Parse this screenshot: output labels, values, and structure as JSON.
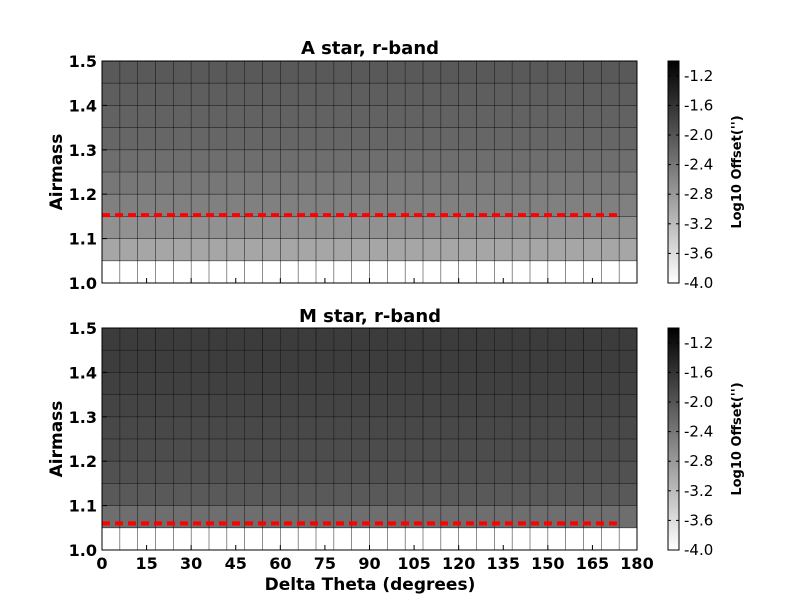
{
  "chart_data": [
    {
      "type": "heatmap",
      "title": "A star, r-band",
      "xlabel": "",
      "ylabel": "Airmass",
      "x_edges": [
        0,
        6,
        12,
        18,
        24,
        30,
        36,
        42,
        48,
        54,
        60,
        66,
        72,
        78,
        84,
        90,
        96,
        102,
        108,
        114,
        120,
        126,
        132,
        138,
        144,
        150,
        156,
        162,
        168,
        174,
        180
      ],
      "y_edges": [
        1.0,
        1.05,
        1.1,
        1.15,
        1.2,
        1.25,
        1.3,
        1.35,
        1.4,
        1.45,
        1.5
      ],
      "row_values": [
        -4.0,
        -2.95,
        -2.7,
        -2.5,
        -2.4,
        -2.3,
        -2.2,
        -2.15,
        -2.1,
        -2.05
      ],
      "xlim": [
        0,
        180
      ],
      "ylim": [
        1.0,
        1.5
      ],
      "yticks": [
        "1.0",
        "1.1",
        "1.2",
        "1.3",
        "1.4",
        "1.5"
      ],
      "xticks": [],
      "reference_line": {
        "y": 1.153,
        "x_range": [
          0,
          174
        ],
        "color": "#ff0000",
        "style": "dashed"
      },
      "colorbar": {
        "label": "Log10 Offset('')",
        "range": [
          -4.0,
          -1.0
        ],
        "ticks": [
          "-1.2",
          "-1.6",
          "-2.0",
          "-2.4",
          "-2.8",
          "-3.2",
          "-3.6",
          "-4.0"
        ],
        "colormap": "gray_r"
      },
      "grid": true
    },
    {
      "type": "heatmap",
      "title": "M star, r-band",
      "xlabel": "Delta Theta (degrees)",
      "ylabel": "Airmass",
      "x_edges": [
        0,
        6,
        12,
        18,
        24,
        30,
        36,
        42,
        48,
        54,
        60,
        66,
        72,
        78,
        84,
        90,
        96,
        102,
        108,
        114,
        120,
        126,
        132,
        138,
        144,
        150,
        156,
        162,
        168,
        174,
        180
      ],
      "y_edges": [
        1.0,
        1.05,
        1.1,
        1.15,
        1.2,
        1.25,
        1.3,
        1.35,
        1.4,
        1.45,
        1.5
      ],
      "row_values": [
        -4.0,
        -2.3,
        -2.05,
        -1.95,
        -1.9,
        -1.85,
        -1.8,
        -1.75,
        -1.72,
        -1.7
      ],
      "xlim": [
        0,
        180
      ],
      "ylim": [
        1.0,
        1.5
      ],
      "yticks": [
        "1.0",
        "1.1",
        "1.2",
        "1.3",
        "1.4",
        "1.5"
      ],
      "xticks": [
        "0",
        "15",
        "30",
        "45",
        "60",
        "75",
        "90",
        "105",
        "120",
        "135",
        "150",
        "165",
        "180"
      ],
      "reference_line": {
        "y": 1.06,
        "x_range": [
          0,
          174
        ],
        "color": "#ff0000",
        "style": "dashed"
      },
      "colorbar": {
        "label": "Log10 Offset('')",
        "range": [
          -4.0,
          -1.0
        ],
        "ticks": [
          "-1.2",
          "-1.6",
          "-2.0",
          "-2.4",
          "-2.8",
          "-3.2",
          "-3.6",
          "-4.0"
        ],
        "colormap": "gray_r"
      },
      "grid": true
    }
  ]
}
